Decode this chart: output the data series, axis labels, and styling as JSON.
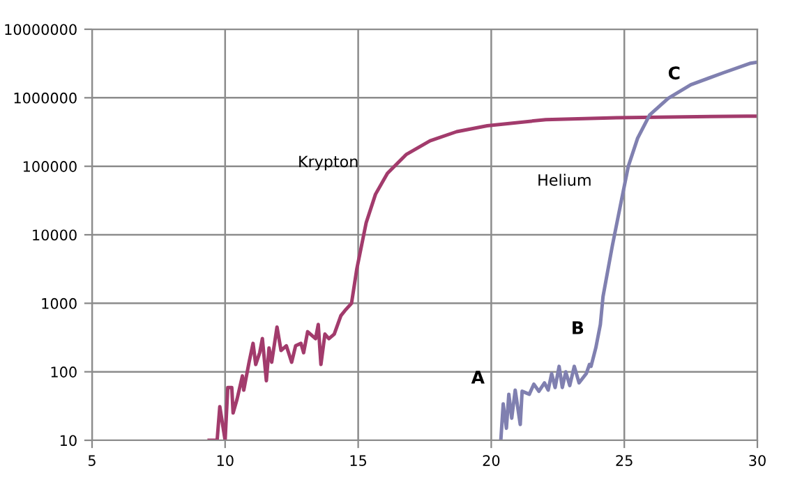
{
  "chart_data": {
    "type": "line",
    "log": "y",
    "grid": true,
    "marker": "none",
    "line_style": "solid",
    "xlim": [
      5,
      30
    ],
    "xticks": [
      5,
      10,
      15,
      20,
      25,
      30
    ],
    "ylim": [
      10,
      10000000
    ],
    "yticks": [
      10,
      100,
      1000,
      10000,
      100000,
      1000000,
      10000000
    ],
    "series": [
      {
        "color": "#a23b6c",
        "x": [
          9.4,
          9.7,
          9.8,
          10.0,
          10.1,
          10.25,
          10.3,
          10.45,
          10.65,
          10.7,
          10.9,
          11.05,
          11.15,
          11.3,
          11.4,
          11.55,
          11.65,
          11.75,
          11.95,
          12.1,
          12.3,
          12.5,
          12.65,
          12.85,
          12.95,
          13.1,
          13.4,
          13.5,
          13.6,
          13.75,
          13.9,
          14.1,
          14.35,
          14.5,
          14.75,
          14.95,
          15.3,
          15.65,
          16.1,
          16.8,
          17.7,
          18.7,
          19.85,
          22.05,
          24.7,
          29.6,
          30
        ],
        "values": [
          10,
          10,
          31,
          10,
          59,
          59,
          25,
          40,
          87,
          54,
          138,
          260,
          128,
          190,
          305,
          74,
          223,
          138,
          450,
          205,
          240,
          138,
          240,
          260,
          190,
          385,
          305,
          490,
          128,
          355,
          305,
          355,
          660,
          780,
          1000,
          3200,
          15000,
          39000,
          79000,
          148000,
          235000,
          320000,
          390000,
          480000,
          510000,
          540000,
          540000
        ]
      },
      {
        "color": "#8080b0",
        "x": [
          20.36,
          20.45,
          20.57,
          20.66,
          20.77,
          20.9,
          21.09,
          21.16,
          21.43,
          21.6,
          21.79,
          22.0,
          22.14,
          22.27,
          22.4,
          22.55,
          22.67,
          22.8,
          22.95,
          23.12,
          23.3,
          23.57,
          23.69,
          23.75,
          23.93,
          24.1,
          24.2,
          24.55,
          24.9,
          25.15,
          25.5,
          25.95,
          26.65,
          27.5,
          28.7,
          29.75,
          30
        ],
        "values": [
          10,
          34,
          15,
          47,
          21,
          54,
          17,
          52,
          47,
          66,
          52,
          69,
          54,
          94,
          59,
          120,
          59,
          100,
          63,
          120,
          69,
          94,
          128,
          120,
          224,
          490,
          1250,
          6900,
          33000,
          100000,
          257000,
          560000,
          980000,
          1550000,
          2300000,
          3200000,
          3300000
        ]
      }
    ],
    "annotations": [
      "Krypton",
      "Helium",
      "A",
      "B",
      "C"
    ]
  }
}
